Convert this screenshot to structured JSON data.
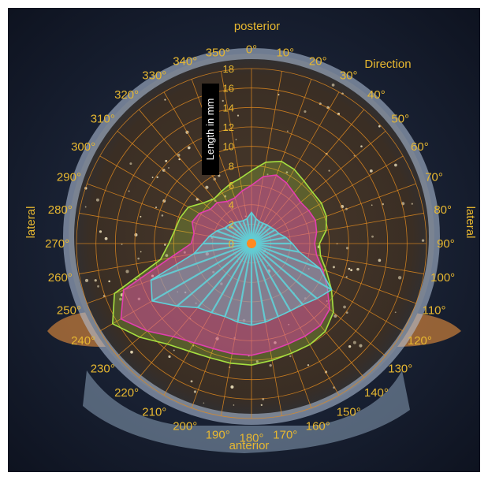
{
  "chart_data": {
    "type": "polar",
    "title": "",
    "radial_axis_label": "Length in mm",
    "radial_ticks": [
      0,
      2,
      4,
      6,
      8,
      10,
      12,
      14,
      16,
      18
    ],
    "rlim": [
      0,
      18
    ],
    "angle_axis_label": "Direction",
    "angle_ticks": [
      "0°",
      "10°",
      "20°",
      "30°",
      "40°",
      "50°",
      "60°",
      "70°",
      "80°",
      "90°",
      "100°",
      "110°",
      "120°",
      "130°",
      "140°",
      "150°",
      "160°",
      "170°",
      "180°",
      "190°",
      "200°",
      "210°",
      "220°",
      "230°",
      "240°",
      "250°",
      "260°",
      "270°",
      "280°",
      "290°",
      "300°",
      "310°",
      "320°",
      "330°",
      "340°",
      "350°"
    ],
    "direction_labels": {
      "top": "posterior",
      "bottom": "anterior",
      "left": "lateral",
      "right": "lateral"
    },
    "angles": [
      0,
      10,
      20,
      30,
      40,
      50,
      60,
      70,
      80,
      90,
      100,
      110,
      120,
      130,
      140,
      150,
      160,
      170,
      180,
      190,
      200,
      210,
      220,
      230,
      240,
      250,
      260,
      270,
      280,
      290,
      300,
      310,
      320,
      330,
      340,
      350
    ],
    "series": [
      {
        "color": "#5fd0d8",
        "values": [
          3.2,
          2.6,
          2.4,
          2.4,
          2.5,
          2.6,
          2.8,
          3.0,
          3.6,
          4.2,
          5.0,
          7.5,
          9.5,
          8.8,
          8.2,
          8.0,
          8.0,
          8.2,
          8.4,
          8.2,
          8.0,
          8.2,
          8.6,
          10.0,
          11.8,
          11.0,
          6.0,
          5.0,
          4.4,
          3.8,
          3.2,
          3.0,
          2.8,
          2.6,
          2.5,
          2.6
        ]
      },
      {
        "color": "#e23fb0",
        "values": [
          6.0,
          7.0,
          7.5,
          7.2,
          6.8,
          6.6,
          6.8,
          7.0,
          6.8,
          6.5,
          6.8,
          7.8,
          9.0,
          10.5,
          11.0,
          11.0,
          11.0,
          11.2,
          11.5,
          11.5,
          11.5,
          11.8,
          12.5,
          14.0,
          15.5,
          14.0,
          8.5,
          6.2,
          6.0,
          6.5,
          6.2,
          5.5,
          5.5,
          5.0,
          5.0,
          5.5
        ]
      },
      {
        "color": "#a6e040",
        "values": [
          7.5,
          8.5,
          9.0,
          8.8,
          8.4,
          8.2,
          8.3,
          8.2,
          7.8,
          7.0,
          7.2,
          8.2,
          9.5,
          11.0,
          11.8,
          12.0,
          12.0,
          12.2,
          12.5,
          12.5,
          12.5,
          12.8,
          13.5,
          15.0,
          16.5,
          15.0,
          9.5,
          8.5,
          8.0,
          7.8,
          7.5,
          6.5,
          6.0,
          6.2,
          6.5,
          6.8
        ]
      }
    ],
    "grid": true
  }
}
